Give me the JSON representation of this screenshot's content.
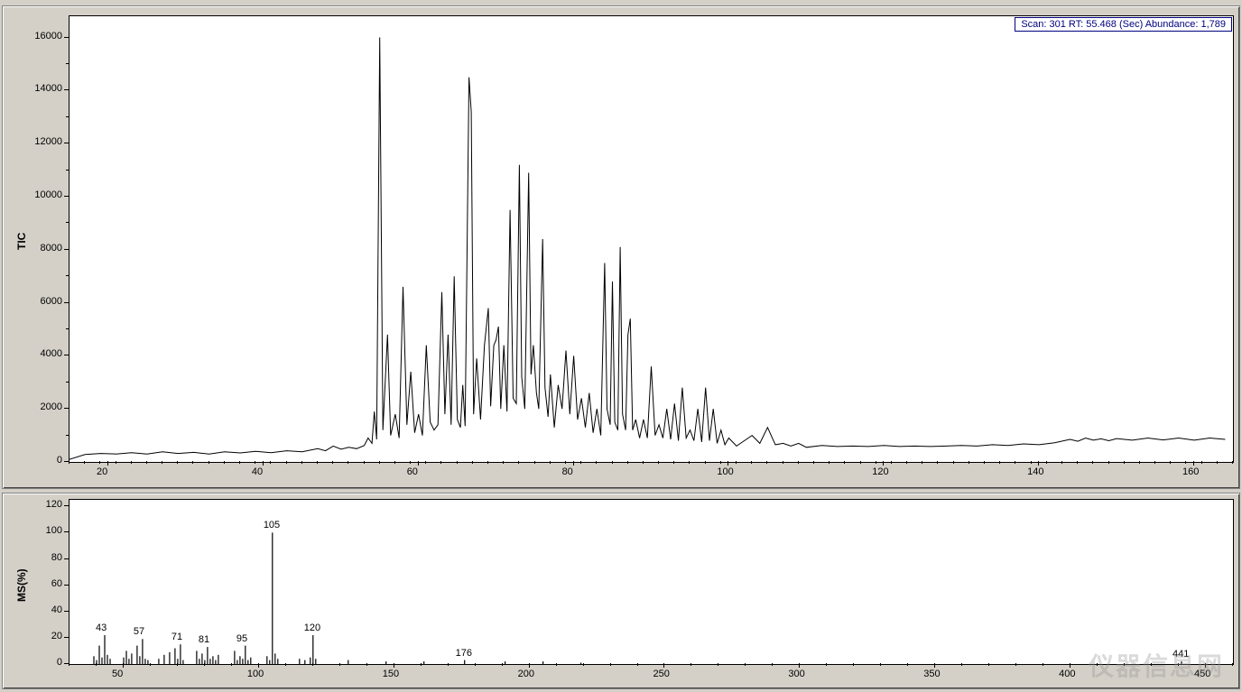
{
  "status": {
    "text": "Scan: 301  RT: 55.468 (Sec)  Abundance: 1,789"
  },
  "colors": {
    "panel_bg": "#d4d0c8",
    "plot_bg": "#ffffff",
    "axis": "#000000",
    "trace": "#000000",
    "status_text": "#000080",
    "status_border": "#000080"
  },
  "tic_chart": {
    "type": "line",
    "ylabel": "TIC",
    "xlim": [
      15,
      165
    ],
    "ylim": [
      0,
      16800
    ],
    "xtick_step": 20,
    "xtick_start": 20,
    "xtick_end": 160,
    "ytick_step": 2000,
    "ytick_start": 0,
    "ytick_end": 16000,
    "label_fontsize": 11,
    "trace_color": "#000000",
    "data": [
      [
        15,
        100
      ],
      [
        17,
        280
      ],
      [
        19,
        320
      ],
      [
        21,
        300
      ],
      [
        23,
        350
      ],
      [
        25,
        300
      ],
      [
        27,
        380
      ],
      [
        29,
        320
      ],
      [
        31,
        360
      ],
      [
        33,
        300
      ],
      [
        35,
        380
      ],
      [
        37,
        340
      ],
      [
        39,
        400
      ],
      [
        41,
        350
      ],
      [
        43,
        420
      ],
      [
        45,
        380
      ],
      [
        47,
        500
      ],
      [
        48,
        420
      ],
      [
        49,
        600
      ],
      [
        50,
        480
      ],
      [
        51,
        550
      ],
      [
        52,
        500
      ],
      [
        53,
        620
      ],
      [
        53.5,
        900
      ],
      [
        54,
        700
      ],
      [
        54.3,
        1900
      ],
      [
        54.6,
        850
      ],
      [
        55,
        16000
      ],
      [
        55.4,
        1200
      ],
      [
        56,
        4800
      ],
      [
        56.4,
        1000
      ],
      [
        57,
        1800
      ],
      [
        57.5,
        900
      ],
      [
        58,
        6600
      ],
      [
        58.5,
        1400
      ],
      [
        59,
        3400
      ],
      [
        59.5,
        1100
      ],
      [
        60,
        1800
      ],
      [
        60.5,
        1000
      ],
      [
        61,
        4400
      ],
      [
        61.5,
        1500
      ],
      [
        62,
        1200
      ],
      [
        62.5,
        1400
      ],
      [
        63,
        6400
      ],
      [
        63.4,
        1800
      ],
      [
        63.8,
        4800
      ],
      [
        64.2,
        1400
      ],
      [
        64.6,
        7000
      ],
      [
        65,
        1600
      ],
      [
        65.4,
        1300
      ],
      [
        65.7,
        2900
      ],
      [
        66,
        1350
      ],
      [
        66.5,
        14500
      ],
      [
        66.8,
        13200
      ],
      [
        67.1,
        1800
      ],
      [
        67.5,
        3900
      ],
      [
        68,
        1600
      ],
      [
        68.5,
        4400
      ],
      [
        69,
        5800
      ],
      [
        69.3,
        2100
      ],
      [
        69.7,
        4400
      ],
      [
        70,
        4600
      ],
      [
        70.3,
        5100
      ],
      [
        70.6,
        2000
      ],
      [
        71,
        4400
      ],
      [
        71.4,
        1900
      ],
      [
        71.8,
        9500
      ],
      [
        72.2,
        2400
      ],
      [
        72.6,
        2200
      ],
      [
        73,
        11200
      ],
      [
        73.3,
        3200
      ],
      [
        73.7,
        2000
      ],
      [
        74.2,
        10900
      ],
      [
        74.5,
        3300
      ],
      [
        74.8,
        4400
      ],
      [
        75.2,
        2600
      ],
      [
        75.5,
        2000
      ],
      [
        76,
        8400
      ],
      [
        76.3,
        2800
      ],
      [
        76.7,
        1700
      ],
      [
        77,
        3300
      ],
      [
        77.5,
        1300
      ],
      [
        78,
        2900
      ],
      [
        78.5,
        2000
      ],
      [
        79,
        4200
      ],
      [
        79.5,
        1800
      ],
      [
        80,
        4000
      ],
      [
        80.5,
        1600
      ],
      [
        81,
        2400
      ],
      [
        81.5,
        1300
      ],
      [
        82,
        2600
      ],
      [
        82.5,
        1100
      ],
      [
        83,
        2000
      ],
      [
        83.5,
        1000
      ],
      [
        84,
        7500
      ],
      [
        84.3,
        2000
      ],
      [
        84.7,
        1400
      ],
      [
        85,
        6800
      ],
      [
        85.3,
        1500
      ],
      [
        85.7,
        1200
      ],
      [
        86,
        8100
      ],
      [
        86.3,
        1800
      ],
      [
        86.7,
        1200
      ],
      [
        87,
        4800
      ],
      [
        87.3,
        5400
      ],
      [
        87.6,
        1200
      ],
      [
        88,
        1600
      ],
      [
        88.5,
        900
      ],
      [
        89,
        1600
      ],
      [
        89.5,
        900
      ],
      [
        90,
        3600
      ],
      [
        90.5,
        1000
      ],
      [
        91,
        1400
      ],
      [
        91.5,
        900
      ],
      [
        92,
        2000
      ],
      [
        92.5,
        850
      ],
      [
        93,
        2200
      ],
      [
        93.5,
        800
      ],
      [
        94,
        2800
      ],
      [
        94.5,
        900
      ],
      [
        95,
        1200
      ],
      [
        95.5,
        800
      ],
      [
        96,
        2000
      ],
      [
        96.5,
        750
      ],
      [
        97,
        2800
      ],
      [
        97.5,
        800
      ],
      [
        98,
        2000
      ],
      [
        98.5,
        700
      ],
      [
        99,
        1200
      ],
      [
        99.5,
        650
      ],
      [
        100,
        900
      ],
      [
        101,
        600
      ],
      [
        102,
        800
      ],
      [
        103,
        1000
      ],
      [
        104,
        700
      ],
      [
        105,
        1300
      ],
      [
        106,
        650
      ],
      [
        107,
        700
      ],
      [
        108,
        600
      ],
      [
        109,
        700
      ],
      [
        110,
        550
      ],
      [
        112,
        620
      ],
      [
        114,
        580
      ],
      [
        116,
        600
      ],
      [
        118,
        580
      ],
      [
        120,
        620
      ],
      [
        122,
        580
      ],
      [
        124,
        600
      ],
      [
        126,
        580
      ],
      [
        128,
        600
      ],
      [
        130,
        620
      ],
      [
        132,
        600
      ],
      [
        134,
        650
      ],
      [
        136,
        620
      ],
      [
        138,
        680
      ],
      [
        140,
        650
      ],
      [
        142,
        720
      ],
      [
        144,
        850
      ],
      [
        145,
        780
      ],
      [
        146,
        900
      ],
      [
        147,
        820
      ],
      [
        148,
        870
      ],
      [
        149,
        800
      ],
      [
        150,
        880
      ],
      [
        152,
        820
      ],
      [
        154,
        900
      ],
      [
        156,
        830
      ],
      [
        158,
        900
      ],
      [
        160,
        820
      ],
      [
        162,
        900
      ],
      [
        164,
        850
      ]
    ]
  },
  "ms_chart": {
    "type": "bar",
    "ylabel": "MS(%)",
    "xlim": [
      30,
      460
    ],
    "ylim": [
      0,
      125
    ],
    "xtick_step": 50,
    "xtick_start": 50,
    "xtick_end": 450,
    "ytick_step": 20,
    "ytick_start": 0,
    "ytick_end": 120,
    "label_fontsize": 11,
    "bar_color": "#000000",
    "labeled_peaks": [
      {
        "mz": 43,
        "label": "43"
      },
      {
        "mz": 57,
        "label": "57"
      },
      {
        "mz": 71,
        "label": "71"
      },
      {
        "mz": 81,
        "label": "81"
      },
      {
        "mz": 95,
        "label": "95"
      },
      {
        "mz": 105,
        "label": "105"
      },
      {
        "mz": 120,
        "label": "120"
      },
      {
        "mz": 176,
        "label": "176"
      },
      {
        "mz": 441,
        "label": "441"
      }
    ],
    "bars": [
      [
        39,
        6
      ],
      [
        40,
        3
      ],
      [
        41,
        14
      ],
      [
        42,
        5
      ],
      [
        43,
        22
      ],
      [
        44,
        7
      ],
      [
        45,
        4
      ],
      [
        50,
        5
      ],
      [
        51,
        10
      ],
      [
        52,
        4
      ],
      [
        53,
        8
      ],
      [
        55,
        14
      ],
      [
        56,
        6
      ],
      [
        57,
        19
      ],
      [
        58,
        4
      ],
      [
        59,
        3
      ],
      [
        63,
        4
      ],
      [
        65,
        7
      ],
      [
        67,
        9
      ],
      [
        69,
        12
      ],
      [
        70,
        4
      ],
      [
        71,
        15
      ],
      [
        72,
        3
      ],
      [
        77,
        10
      ],
      [
        78,
        4
      ],
      [
        79,
        8
      ],
      [
        80,
        3
      ],
      [
        81,
        13
      ],
      [
        82,
        4
      ],
      [
        83,
        6
      ],
      [
        84,
        3
      ],
      [
        85,
        7
      ],
      [
        91,
        10
      ],
      [
        92,
        3
      ],
      [
        93,
        6
      ],
      [
        94,
        4
      ],
      [
        95,
        14
      ],
      [
        96,
        3
      ],
      [
        97,
        5
      ],
      [
        103,
        6
      ],
      [
        104,
        3
      ],
      [
        105,
        100
      ],
      [
        106,
        8
      ],
      [
        107,
        4
      ],
      [
        115,
        4
      ],
      [
        117,
        3
      ],
      [
        119,
        5
      ],
      [
        120,
        22
      ],
      [
        121,
        4
      ],
      [
        133,
        3
      ],
      [
        147,
        2
      ],
      [
        161,
        2
      ],
      [
        176,
        3
      ],
      [
        191,
        2
      ],
      [
        205,
        2
      ],
      [
        219,
        1
      ],
      [
        441,
        2
      ]
    ]
  },
  "watermark": "仪器信息网"
}
